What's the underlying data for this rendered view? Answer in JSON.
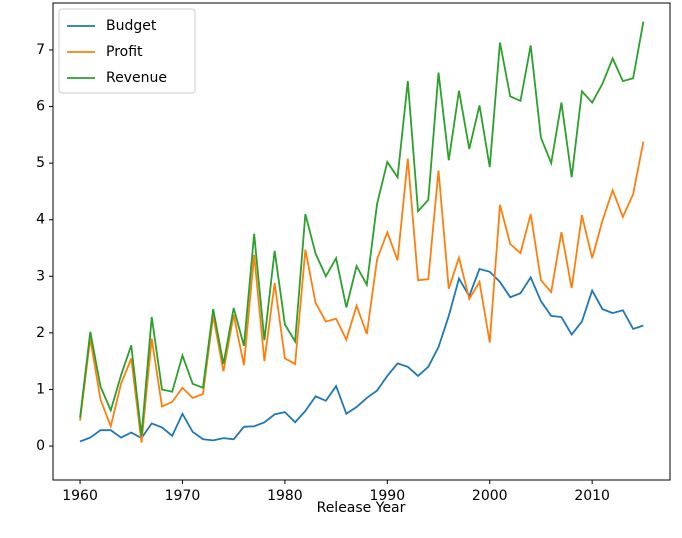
{
  "chart_data": {
    "type": "line",
    "xlabel": "Release Year",
    "x": [
      1960,
      1961,
      1962,
      1963,
      1964,
      1965,
      1966,
      1967,
      1968,
      1969,
      1970,
      1971,
      1972,
      1973,
      1974,
      1975,
      1976,
      1977,
      1978,
      1979,
      1980,
      1981,
      1982,
      1983,
      1984,
      1985,
      1986,
      1987,
      1988,
      1989,
      1990,
      1991,
      1992,
      1993,
      1994,
      1995,
      1996,
      1997,
      1998,
      1999,
      2000,
      2001,
      2002,
      2003,
      2004,
      2005,
      2006,
      2007,
      2008,
      2009,
      2010,
      2011,
      2012,
      2013,
      2014,
      2015
    ],
    "series": [
      {
        "name": "Budget",
        "color": "#1f77b4",
        "values": [
          0.08,
          0.15,
          0.28,
          0.28,
          0.15,
          0.24,
          0.14,
          0.4,
          0.33,
          0.18,
          0.57,
          0.25,
          0.12,
          0.1,
          0.14,
          0.12,
          0.34,
          0.35,
          0.42,
          0.56,
          0.6,
          0.42,
          0.62,
          0.88,
          0.8,
          1.06,
          0.57,
          0.69,
          0.85,
          0.98,
          1.24,
          1.46,
          1.4,
          1.24,
          1.4,
          1.75,
          2.3,
          2.96,
          2.65,
          3.13,
          3.08,
          2.9,
          2.63,
          2.7,
          2.98,
          2.56,
          2.3,
          2.28,
          1.97,
          2.2,
          2.75,
          2.42,
          2.35,
          2.4,
          2.07,
          2.13
        ]
      },
      {
        "name": "Profit",
        "color": "#ff7f0e",
        "values": [
          0.45,
          1.9,
          0.82,
          0.35,
          1.1,
          1.55,
          0.06,
          1.9,
          0.7,
          0.78,
          1.03,
          0.85,
          0.92,
          2.3,
          1.32,
          2.32,
          1.43,
          3.38,
          1.5,
          2.88,
          1.55,
          1.45,
          3.47,
          2.53,
          2.2,
          2.25,
          1.88,
          2.48,
          1.98,
          3.3,
          3.78,
          3.28,
          5.08,
          2.93,
          2.95,
          4.87,
          2.78,
          3.33,
          2.6,
          2.9,
          1.83,
          4.26,
          3.57,
          3.41,
          4.1,
          2.93,
          2.72,
          3.78,
          2.79,
          4.08,
          3.32,
          3.98,
          4.52,
          4.05,
          4.45,
          5.38
        ]
      },
      {
        "name": "Revenue",
        "color": "#2ca02c",
        "values": [
          0.5,
          2.02,
          1.05,
          0.63,
          1.25,
          1.78,
          0.18,
          2.28,
          1.0,
          0.96,
          1.6,
          1.1,
          1.03,
          2.42,
          1.45,
          2.44,
          1.77,
          3.75,
          1.87,
          3.45,
          2.15,
          1.85,
          4.1,
          3.4,
          3.0,
          3.32,
          2.45,
          3.18,
          2.85,
          4.28,
          5.02,
          4.75,
          6.45,
          4.15,
          4.35,
          6.6,
          5.05,
          6.28,
          5.25,
          6.02,
          4.93,
          7.13,
          6.18,
          6.1,
          7.08,
          5.45,
          5.0,
          6.07,
          4.75,
          6.27,
          6.07,
          6.4,
          6.85,
          6.45,
          6.5,
          7.5
        ]
      }
    ],
    "xlim": [
      1957.36,
      2017.6
    ],
    "xticks": [
      1960,
      1970,
      1980,
      1990,
      2000,
      2010
    ],
    "ylim": [
      -0.6,
      7.83
    ],
    "yticks": [
      0,
      1,
      2,
      3,
      4,
      5,
      6,
      7
    ],
    "legend": "upper left",
    "grid": false
  }
}
